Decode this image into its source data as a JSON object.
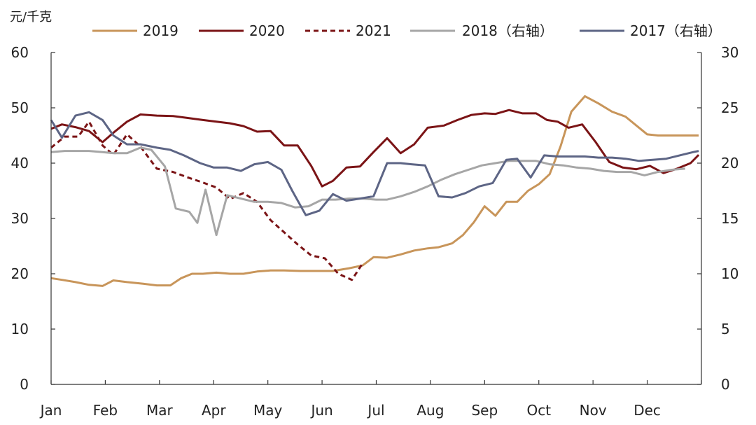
{
  "chart_data": {
    "type": "line",
    "unit_label": "元/千克",
    "categories": [
      "Jan",
      "Feb",
      "Mar",
      "Apr",
      "May",
      "Jun",
      "Jul",
      "Aug",
      "Sep",
      "Oct",
      "Nov",
      "Dec"
    ],
    "left_axis": {
      "ylim": [
        0,
        60
      ],
      "ticks": [
        0,
        10,
        20,
        30,
        40,
        50,
        60
      ]
    },
    "right_axis": {
      "ylim": [
        0,
        30
      ],
      "ticks": [
        0,
        5,
        10,
        15,
        20,
        25,
        30
      ]
    },
    "xlim": [
      0,
      12
    ],
    "grid": false,
    "legend_position": "top",
    "series": [
      {
        "name": "2019",
        "axis": "left",
        "color": "#c8955a",
        "dash": "solid",
        "x": [
          0,
          0.2,
          0.45,
          0.7,
          0.95,
          1.15,
          1.4,
          1.7,
          1.95,
          2.2,
          2.4,
          2.6,
          2.8,
          3.05,
          3.3,
          3.55,
          3.8,
          4.05,
          4.3,
          4.6,
          4.9,
          5.2,
          5.5,
          5.75,
          5.95,
          6.2,
          6.45,
          6.7,
          6.95,
          7.15,
          7.4,
          7.6,
          7.8,
          8.0,
          8.2,
          8.4,
          8.6,
          8.8,
          9.0,
          9.2,
          9.4,
          9.6,
          9.85,
          10.1,
          10.35,
          10.6,
          10.8,
          11.0,
          11.2,
          11.45,
          11.7,
          11.95
        ],
        "y": [
          19.2,
          18.9,
          18.5,
          18.0,
          17.8,
          18.8,
          18.5,
          18.2,
          17.9,
          17.9,
          19.2,
          20.0,
          20.0,
          20.2,
          20.0,
          20.0,
          20.4,
          20.6,
          20.6,
          20.5,
          20.5,
          20.5,
          21.0,
          21.5,
          23.0,
          22.9,
          23.5,
          24.2,
          24.6,
          24.8,
          25.5,
          27.0,
          29.3,
          32.2,
          30.5,
          33.0,
          33.0,
          35.0,
          36.2,
          38.0,
          43.0,
          49.3,
          52.1,
          50.8,
          49.3,
          48.4,
          46.8,
          45.2,
          45.0,
          45.0,
          45.0,
          45.0
        ]
      },
      {
        "name": "2020",
        "axis": "left",
        "color": "#7b1416",
        "dash": "solid",
        "x": [
          0,
          0.2,
          0.45,
          0.7,
          0.95,
          1.15,
          1.4,
          1.65,
          1.95,
          2.25,
          2.5,
          2.8,
          3.05,
          3.3,
          3.55,
          3.8,
          4.05,
          4.3,
          4.55,
          4.8,
          5.0,
          5.2,
          5.45,
          5.7,
          5.95,
          6.2,
          6.45,
          6.7,
          6.95,
          7.25,
          7.5,
          7.75,
          8.0,
          8.2,
          8.45,
          8.7,
          8.95,
          9.15,
          9.35,
          9.55,
          9.8,
          10.05,
          10.3,
          10.55,
          10.8,
          11.05,
          11.3,
          11.55,
          11.8,
          11.95
        ],
        "y": [
          46.2,
          47.0,
          46.5,
          45.8,
          43.8,
          45.5,
          47.5,
          48.8,
          48.6,
          48.5,
          48.2,
          47.8,
          47.5,
          47.2,
          46.7,
          45.7,
          45.8,
          43.2,
          43.2,
          39.5,
          35.8,
          36.8,
          39.2,
          39.4,
          42.0,
          44.5,
          41.8,
          43.4,
          46.4,
          46.8,
          47.8,
          48.7,
          49.0,
          48.9,
          49.6,
          49.0,
          49.0,
          47.8,
          47.5,
          46.4,
          47.0,
          43.8,
          40.2,
          39.2,
          38.9,
          39.5,
          38.2,
          39.0,
          40.0,
          41.5
        ]
      },
      {
        "name": "2021",
        "axis": "left",
        "color": "#7b1416",
        "dash": "dashed",
        "x": [
          0,
          0.25,
          0.5,
          0.7,
          0.95,
          1.15,
          1.4,
          1.65,
          1.95,
          2.25,
          2.5,
          2.8,
          3.05,
          3.3,
          3.55,
          3.8,
          4.05,
          4.3,
          4.55,
          4.8,
          5.05,
          5.3,
          5.55,
          5.75
        ],
        "y": [
          42.8,
          44.8,
          44.8,
          47.5,
          43.2,
          41.5,
          45.2,
          43.0,
          39.0,
          38.4,
          37.5,
          36.5,
          35.6,
          33.5,
          34.6,
          33.0,
          29.7,
          27.5,
          25.3,
          23.3,
          22.8,
          20.0,
          18.9,
          21.9
        ]
      },
      {
        "name": "2018（右轴）",
        "axis": "right",
        "color": "#a6a6a6",
        "dash": "solid",
        "x": [
          0,
          0.25,
          0.5,
          0.7,
          0.95,
          1.15,
          1.4,
          1.65,
          1.85,
          2.1,
          2.3,
          2.55,
          2.7,
          2.85,
          3.05,
          3.25,
          3.5,
          3.75,
          4.0,
          4.25,
          4.5,
          4.75,
          5.0,
          5.25,
          5.5,
          5.75,
          6.0,
          6.2,
          6.45,
          6.7,
          6.95,
          7.2,
          7.45,
          7.7,
          7.95,
          8.2,
          8.45,
          8.7,
          8.95,
          9.2,
          9.45,
          9.7,
          9.95,
          10.2,
          10.45,
          10.7,
          10.95,
          11.2,
          11.45,
          11.7
        ],
        "y": [
          21.0,
          21.1,
          21.1,
          21.1,
          21.0,
          20.9,
          20.9,
          21.4,
          21.2,
          19.7,
          15.9,
          15.6,
          14.6,
          17.6,
          13.5,
          17.1,
          16.8,
          16.5,
          16.5,
          16.4,
          16.0,
          16.1,
          16.7,
          16.7,
          16.8,
          16.8,
          16.7,
          16.7,
          17.0,
          17.4,
          17.9,
          18.5,
          19.0,
          19.4,
          19.8,
          20.0,
          20.2,
          20.2,
          20.2,
          19.9,
          19.8,
          19.6,
          19.5,
          19.3,
          19.2,
          19.2,
          18.9,
          19.2,
          19.4,
          19.5
        ]
      },
      {
        "name": "2017（右轴）",
        "axis": "right",
        "color": "#5d6585",
        "dash": "solid",
        "x": [
          0,
          0.2,
          0.45,
          0.7,
          0.95,
          1.15,
          1.4,
          1.65,
          1.95,
          2.2,
          2.45,
          2.75,
          3.0,
          3.25,
          3.5,
          3.75,
          4.0,
          4.25,
          4.45,
          4.7,
          4.95,
          5.2,
          5.45,
          5.7,
          5.95,
          6.2,
          6.45,
          6.65,
          6.9,
          7.15,
          7.4,
          7.65,
          7.9,
          8.15,
          8.4,
          8.6,
          8.85,
          9.1,
          9.35,
          9.6,
          9.85,
          10.1,
          10.35,
          10.6,
          10.85,
          11.1,
          11.35,
          11.6,
          11.85,
          11.95
        ],
        "y": [
          23.9,
          22.3,
          24.3,
          24.6,
          23.9,
          22.5,
          21.7,
          21.7,
          21.4,
          21.2,
          20.7,
          20.0,
          19.6,
          19.6,
          19.3,
          19.9,
          20.1,
          19.4,
          17.5,
          15.3,
          15.7,
          17.2,
          16.6,
          16.8,
          17.0,
          20.0,
          20.0,
          19.9,
          19.8,
          17.0,
          16.9,
          17.3,
          17.9,
          18.2,
          20.3,
          20.4,
          18.7,
          20.7,
          20.6,
          20.6,
          20.6,
          20.5,
          20.5,
          20.4,
          20.2,
          20.3,
          20.4,
          20.7,
          21.0,
          21.1
        ]
      }
    ]
  }
}
